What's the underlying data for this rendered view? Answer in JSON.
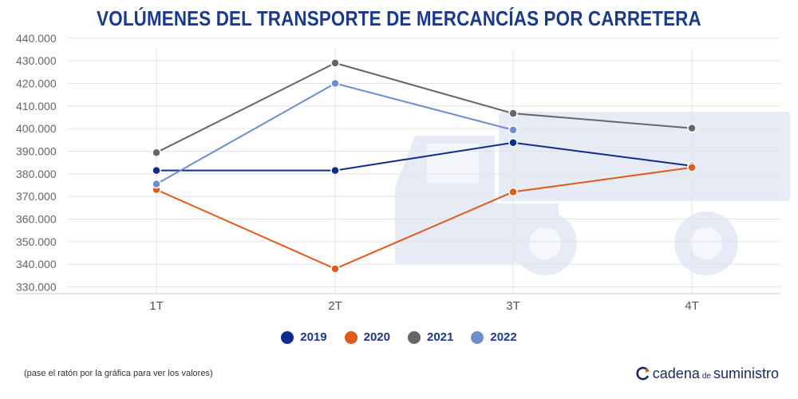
{
  "chart_data": {
    "type": "line",
    "title": "VOLÚMENES DEL TRANSPORTE DE MERCANCÍAS POR CARRETERA",
    "categories": [
      "1T",
      "2T",
      "3T",
      "4T"
    ],
    "y_ticks": [
      "440.000",
      "430.000",
      "420.000",
      "410.000",
      "400.000",
      "390.000",
      "380.000",
      "370.000",
      "360.000",
      "350.000",
      "340.000",
      "330.000"
    ],
    "y_tick_values": [
      440000,
      430000,
      420000,
      410000,
      400000,
      390000,
      380000,
      370000,
      360000,
      350000,
      340000,
      330000
    ],
    "ylim": [
      327000,
      441000
    ],
    "grid": true,
    "legend_position": "bottom",
    "series": [
      {
        "name": "2019",
        "color": "#0d2d8c",
        "values": [
          381500,
          381500,
          393800,
          383500
        ]
      },
      {
        "name": "2020",
        "color": "#e05a19",
        "values": [
          373000,
          338000,
          372000,
          382800
        ]
      },
      {
        "name": "2021",
        "color": "#666666",
        "values": [
          389400,
          429000,
          406700,
          400200
        ]
      },
      {
        "name": "2022",
        "color": "#6f8fcc",
        "values": [
          375500,
          420000,
          399400,
          null
        ]
      }
    ]
  },
  "footnote": "(pase el ratón por la gráfica para ver los valores)",
  "brand": {
    "word1": "cadena",
    "word2": "de",
    "word3": "suministro"
  },
  "icons": {
    "background": "truck-icon",
    "brand": "brand-logo-icon"
  }
}
